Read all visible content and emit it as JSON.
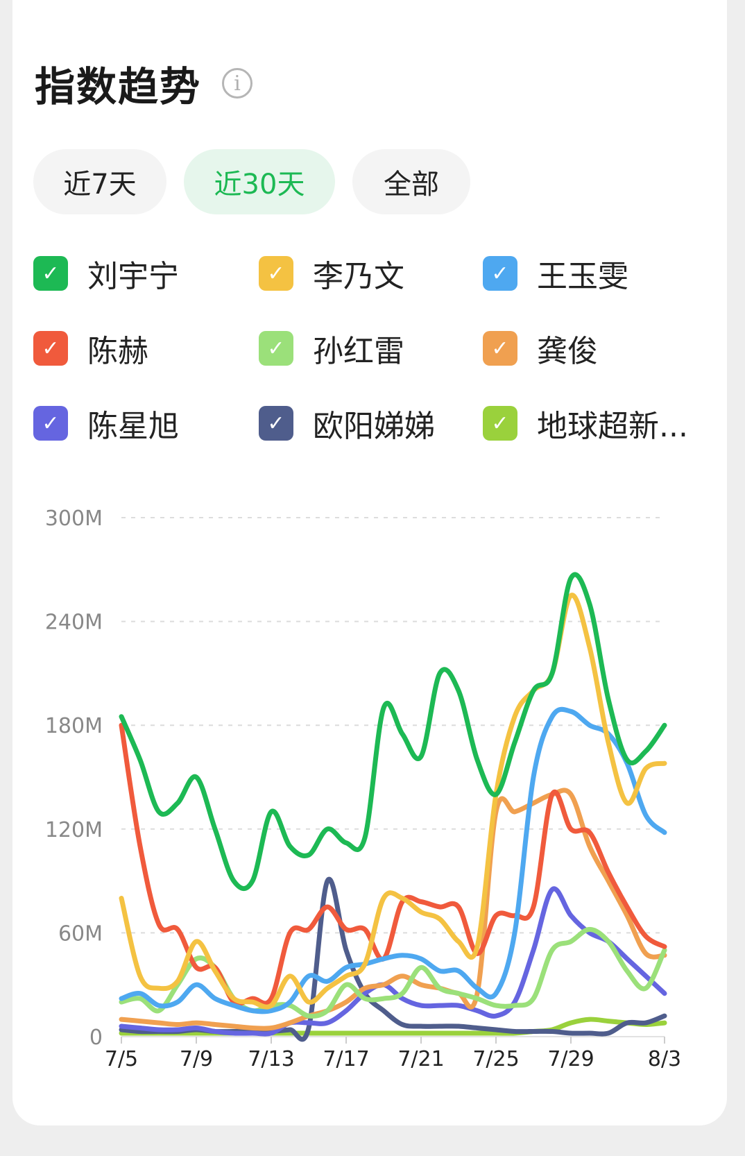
{
  "header": {
    "title": "指数趋势",
    "info_icon_glyph": "i"
  },
  "tabs": [
    {
      "label": "近7天",
      "active": false
    },
    {
      "label": "近30天",
      "active": true
    },
    {
      "label": "全部",
      "active": false
    }
  ],
  "legend": [
    {
      "label": "刘宇宁",
      "color": "#1db954"
    },
    {
      "label": "李乃文",
      "color": "#f4c242"
    },
    {
      "label": "王玉雯",
      "color": "#4ea8f0"
    },
    {
      "label": "陈赫",
      "color": "#f05a3c"
    },
    {
      "label": "孙红雷",
      "color": "#9be07a"
    },
    {
      "label": "龚俊",
      "color": "#f0a050"
    },
    {
      "label": "陈星旭",
      "color": "#6565e0"
    },
    {
      "label": "欧阳娣娣",
      "color": "#4f5d8c"
    },
    {
      "label": "地球超新...",
      "color": "#9ad13c"
    }
  ],
  "chart_data": {
    "type": "line",
    "x": [
      "7/5",
      "7/6",
      "7/7",
      "7/8",
      "7/9",
      "7/10",
      "7/11",
      "7/12",
      "7/13",
      "7/14",
      "7/15",
      "7/16",
      "7/17",
      "7/18",
      "7/19",
      "7/20",
      "7/21",
      "7/22",
      "7/23",
      "7/24",
      "7/25",
      "7/26",
      "7/27",
      "7/28",
      "7/29",
      "7/30",
      "7/31",
      "8/1",
      "8/2",
      "8/3"
    ],
    "x_tick_labels": [
      "7/5",
      "7/9",
      "7/13",
      "7/17",
      "7/21",
      "7/25",
      "7/29",
      "8/3"
    ],
    "y_tick_labels": [
      "0",
      "60M",
      "120M",
      "180M",
      "240M",
      "300M"
    ],
    "ylim": [
      0,
      300
    ],
    "y_unit": "M",
    "grid": true,
    "series": [
      {
        "name": "刘宇宁",
        "color": "#1db954",
        "values": [
          185,
          160,
          130,
          135,
          150,
          120,
          90,
          90,
          130,
          110,
          105,
          120,
          112,
          115,
          190,
          175,
          162,
          210,
          200,
          160,
          140,
          170,
          200,
          210,
          265,
          250,
          195,
          160,
          165,
          180
        ]
      },
      {
        "name": "李乃文",
        "color": "#f4c242",
        "values": [
          80,
          35,
          28,
          32,
          55,
          38,
          22,
          20,
          18,
          35,
          20,
          28,
          35,
          42,
          80,
          80,
          72,
          68,
          55,
          52,
          140,
          185,
          200,
          210,
          255,
          225,
          170,
          135,
          155,
          158
        ]
      },
      {
        "name": "王玉雯",
        "color": "#4ea8f0",
        "values": [
          22,
          25,
          18,
          20,
          30,
          22,
          18,
          15,
          15,
          20,
          35,
          32,
          40,
          42,
          45,
          47,
          45,
          38,
          38,
          28,
          25,
          60,
          150,
          185,
          188,
          180,
          175,
          158,
          128,
          118
        ]
      },
      {
        "name": "陈赫",
        "color": "#f05a3c",
        "values": [
          180,
          110,
          65,
          62,
          40,
          40,
          20,
          22,
          22,
          60,
          62,
          75,
          62,
          62,
          45,
          78,
          78,
          75,
          75,
          48,
          70,
          70,
          75,
          140,
          120,
          118,
          95,
          75,
          58,
          52
        ]
      },
      {
        "name": "孙红雷",
        "color": "#9be07a",
        "values": [
          20,
          22,
          15,
          30,
          45,
          40,
          22,
          15,
          18,
          18,
          12,
          15,
          30,
          22,
          22,
          25,
          40,
          28,
          25,
          22,
          18,
          18,
          22,
          50,
          55,
          62,
          55,
          38,
          28,
          50
        ]
      },
      {
        "name": "龚俊",
        "color": "#f0a050",
        "values": [
          10,
          9,
          8,
          7,
          8,
          7,
          6,
          5,
          5,
          8,
          12,
          15,
          20,
          28,
          30,
          35,
          30,
          28,
          25,
          25,
          130,
          130,
          135,
          140,
          140,
          110,
          90,
          70,
          48,
          47
        ]
      },
      {
        "name": "陈星旭",
        "color": "#6565e0",
        "values": [
          6,
          5,
          4,
          4,
          5,
          3,
          2,
          2,
          2,
          8,
          8,
          8,
          15,
          25,
          30,
          22,
          18,
          18,
          18,
          15,
          12,
          20,
          50,
          85,
          70,
          60,
          55,
          45,
          35,
          25
        ]
      },
      {
        "name": "欧阳娣娣",
        "color": "#4f5d8c",
        "values": [
          4,
          3,
          3,
          3,
          4,
          3,
          3,
          3,
          3,
          4,
          5,
          90,
          50,
          25,
          15,
          7,
          6,
          6,
          6,
          5,
          4,
          3,
          3,
          3,
          2,
          2,
          2,
          8,
          8,
          12
        ]
      },
      {
        "name": "地球超新...",
        "color": "#9ad13c",
        "values": [
          2,
          2,
          2,
          2,
          2,
          2,
          2,
          2,
          2,
          2,
          2,
          2,
          2,
          2,
          2,
          2,
          2,
          2,
          2,
          2,
          2,
          2,
          3,
          4,
          8,
          10,
          9,
          8,
          7,
          8
        ]
      }
    ]
  }
}
